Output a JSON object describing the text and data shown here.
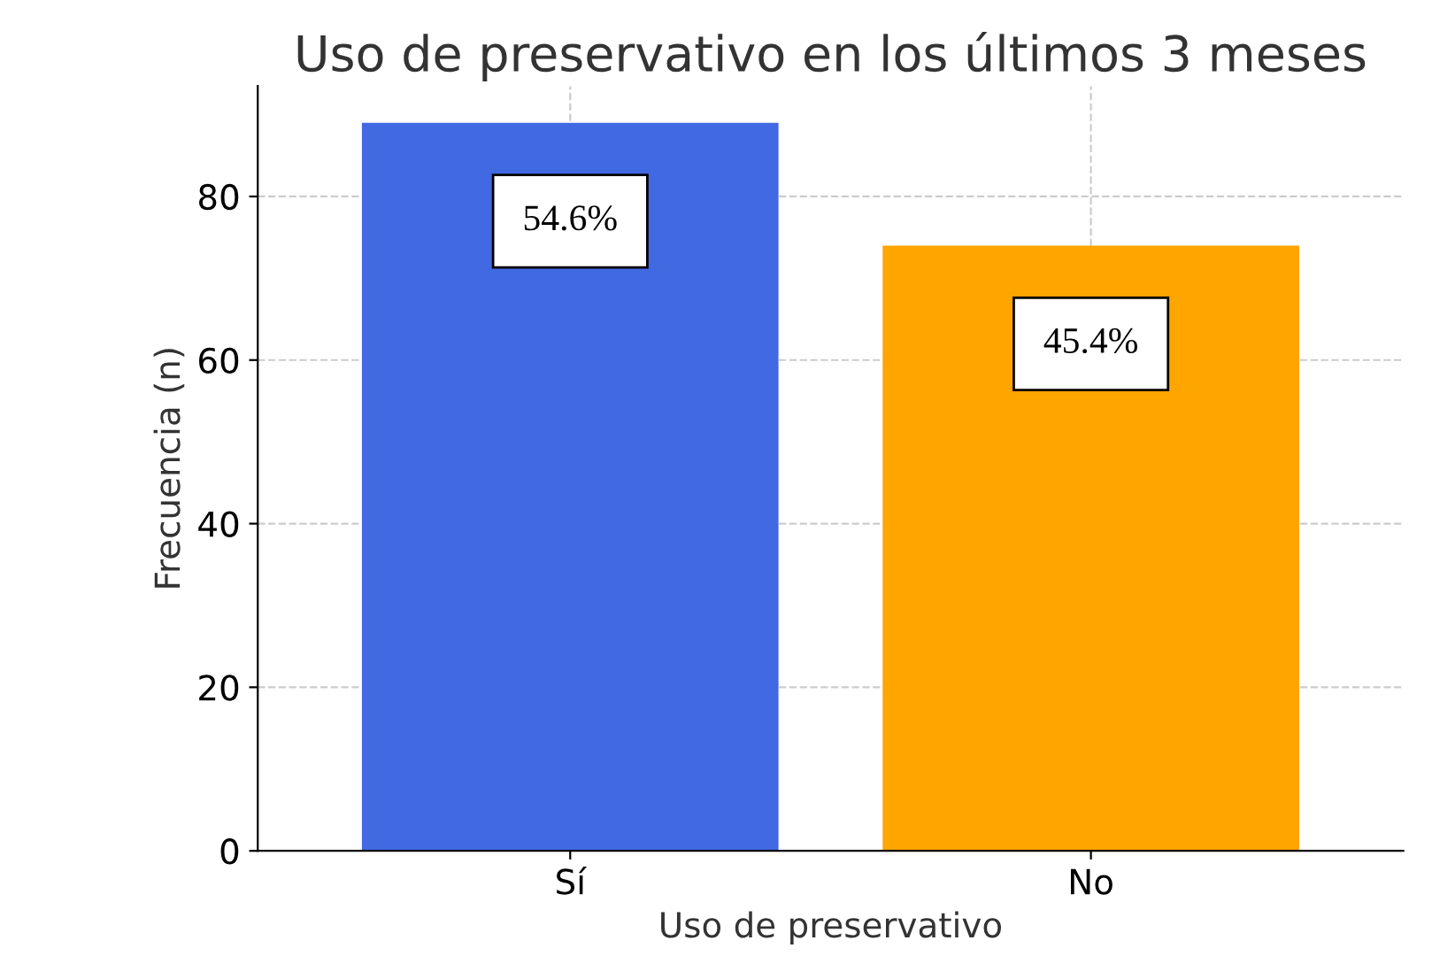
{
  "chart_data": {
    "type": "bar",
    "title": "Uso de preservativo en los últimos 3 meses",
    "xlabel": "Uso de preservativo",
    "ylabel": "Frecuencia (n)",
    "categories": [
      "Sí",
      "No"
    ],
    "values": [
      89,
      74
    ],
    "colors": [
      "#4169e1",
      "#ffa500"
    ],
    "ylim": [
      0,
      93.5
    ],
    "yticks": [
      0,
      20,
      40,
      60,
      80
    ],
    "grid": true,
    "annotations": [
      {
        "text": "54.6%",
        "x": "Sí",
        "y": 89
      },
      {
        "text": "45.4%",
        "x": "No",
        "y": 74
      }
    ]
  }
}
